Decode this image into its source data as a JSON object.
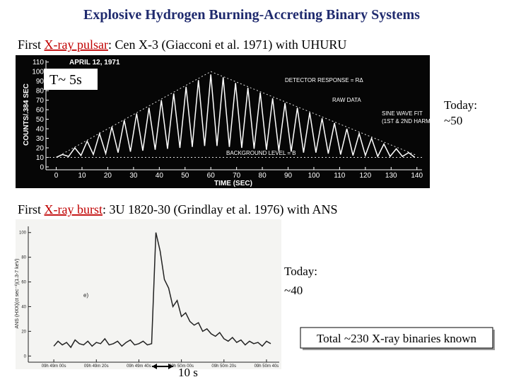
{
  "title": "Explosive Hydrogen Burning-Accreting Binary Systems",
  "pulsar": {
    "caption": {
      "lead": "First ",
      "link": "X-ray pulsar",
      "rest": ": Cen X-3 (Giacconi et al. 1971) with UHURU"
    },
    "note": "T~ 5s",
    "today": [
      "Today:",
      "~50"
    ],
    "chart_data": {
      "type": "line",
      "date": "APRIL 12, 1971",
      "xlabel": "TIME (SEC)",
      "ylabel": "COUNTS/.384 SEC",
      "annotations": [
        "DETECTOR RESPONSE = RΔ",
        "RAW DATA",
        "SINE WAVE FIT",
        "(1ST & 2ND HARMONIC)",
        "BACKGROUND LEVEL = B"
      ],
      "xlim": [
        -4,
        142
      ],
      "xticks": [
        0,
        10,
        20,
        30,
        40,
        50,
        60,
        70,
        80,
        90,
        100,
        110,
        120,
        130,
        140
      ],
      "ylim": [
        -3,
        112
      ],
      "yticks": [
        0,
        10,
        20,
        30,
        40,
        50,
        60,
        70,
        80,
        90,
        100,
        110
      ],
      "series": [
        {
          "color": "#ffffff",
          "x": [
            0,
            2.4,
            4.8,
            7.2,
            9.6,
            12,
            14.4,
            16.8,
            19.2,
            21.6,
            24,
            26.4,
            28.8,
            31.2,
            33.6,
            36,
            38.4,
            40.8,
            43.2,
            45.6,
            48,
            50.4,
            52.8,
            55.2,
            57.6,
            60,
            62.4,
            64.8,
            67.2,
            69.6,
            72,
            74.4,
            76.8,
            79.2,
            81.6,
            84,
            86.4,
            88.8,
            91.2,
            93.6,
            96,
            98.4,
            100.8,
            103.2,
            105.6,
            108,
            110.4,
            112.8,
            115.2,
            117.6,
            120,
            122.4,
            124.8,
            127.2,
            129.6,
            132,
            134.4,
            136.8,
            139.2
          ],
          "values": [
            10,
            13,
            11,
            20,
            12,
            27,
            13,
            35,
            14,
            42,
            15,
            49,
            16,
            56,
            17,
            62,
            18,
            70,
            19,
            77,
            20,
            84,
            21,
            91,
            22,
            97,
            22,
            94,
            21,
            88,
            20,
            83,
            19,
            78,
            18,
            72,
            17,
            67,
            16,
            62,
            15,
            57,
            15,
            51,
            14,
            46,
            13,
            40,
            12,
            35,
            12,
            30,
            11,
            24,
            11,
            19,
            11,
            15,
            10
          ]
        }
      ],
      "envelope": {
        "x": [
          0,
          60,
          140
        ],
        "values": [
          10,
          100,
          12
        ]
      },
      "background_level": 10
    }
  },
  "burst": {
    "caption": {
      "lead": "First ",
      "link": "X-ray burst",
      "rest": ": 3U 1820-30 (Grindlay et al. 1976) with ANS"
    },
    "today": [
      "Today:",
      "~40"
    ],
    "scale_note": "10 s",
    "chart_data": {
      "type": "line",
      "panel": "e)",
      "ylabel": "ANS (HXX)(ct sec⁻¹)(1.3-7 keV)",
      "xlim": [
        -12,
        106
      ],
      "xticks": [
        {
          "value": 0,
          "label": "09h 49m 00s"
        },
        {
          "value": 20,
          "label": "09h 49m 20s"
        },
        {
          "value": 40,
          "label": "09h 49m 40s"
        },
        {
          "value": 60,
          "label": "09h 50m 00s"
        },
        {
          "value": 80,
          "label": "09h 50m 20s"
        },
        {
          "value": 100,
          "label": "09h 50m 40s"
        }
      ],
      "ylim": [
        -5,
        105
      ],
      "yticks": [
        0,
        20,
        40,
        60,
        80,
        100
      ],
      "series": [
        {
          "color": "#222222",
          "x": [
            0,
            2,
            4,
            6,
            8,
            10,
            12,
            14,
            16,
            18,
            20,
            22,
            24,
            26,
            28,
            30,
            32,
            34,
            36,
            38,
            40,
            42,
            44,
            46,
            48,
            50,
            52,
            54,
            56,
            58,
            60,
            62,
            64,
            66,
            68,
            70,
            72,
            74,
            76,
            78,
            80,
            82,
            84,
            86,
            88,
            90,
            92,
            94,
            96,
            98,
            100,
            102
          ],
          "values": [
            8,
            12,
            9,
            11,
            7,
            13,
            10,
            9,
            12,
            8,
            11,
            10,
            14,
            9,
            10,
            12,
            8,
            11,
            13,
            9,
            10,
            12,
            9,
            10,
            100,
            85,
            62,
            55,
            40,
            45,
            32,
            35,
            28,
            25,
            27,
            20,
            22,
            18,
            16,
            19,
            14,
            12,
            15,
            11,
            13,
            9,
            12,
            10,
            11,
            8,
            12,
            10
          ]
        }
      ]
    }
  },
  "total": "Total ~230 X-ray binaries known"
}
